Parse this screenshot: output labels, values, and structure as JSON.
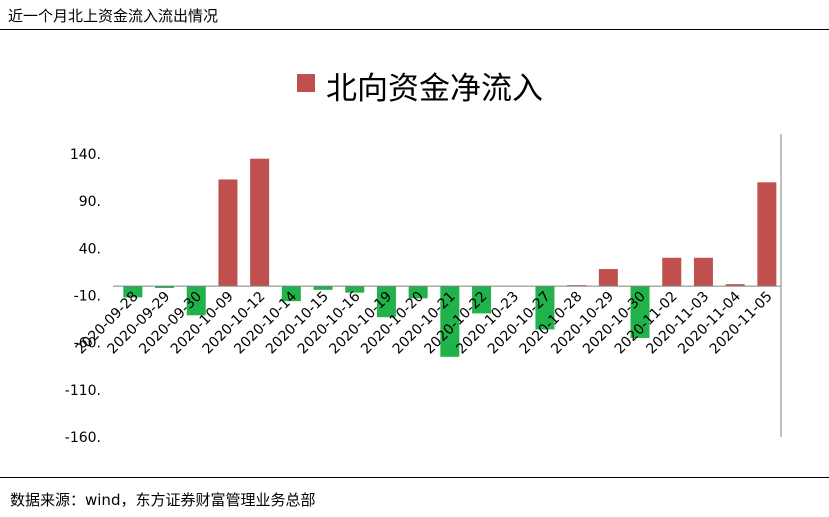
{
  "page": {
    "title": "近一个月北上资金流入流出情况",
    "source": "数据来源：wind，东方证券财富管理业务总部"
  },
  "colors": {
    "positive": "#c0504d",
    "negative": "#22b24c",
    "axis": "#808080"
  },
  "chart_data": {
    "type": "bar",
    "legend": "北向资金净流入",
    "legend_position": "top",
    "categories": [
      "2020-09-28",
      "2020-09-29",
      "2020-09-30",
      "2020-10-09",
      "2020-10-12",
      "2020-10-14",
      "2020-10-15",
      "2020-10-16",
      "2020-10-19",
      "2020-10-20",
      "2020-10-21",
      "2020-10-22",
      "2020-10-23",
      "2020-10-27",
      "2020-10-28",
      "2020-10-29",
      "2020-10-30",
      "2020-11-02",
      "2020-11-03",
      "2020-11-04",
      "2020-11-05"
    ],
    "values": [
      -12,
      -2,
      -31,
      113,
      135,
      -16,
      -4,
      -7,
      -33,
      -13,
      -75,
      -29,
      0,
      -46,
      1,
      18,
      -55,
      30,
      30,
      2,
      110
    ],
    "y_ticks": [
      140,
      90,
      40,
      -10,
      -60,
      -110,
      -160
    ],
    "y_tick_labels": [
      "140.",
      "90.",
      "40.",
      "-10.",
      "-60.",
      "-110.",
      "-160."
    ],
    "ylim": [
      -160,
      140
    ],
    "grid": false
  }
}
